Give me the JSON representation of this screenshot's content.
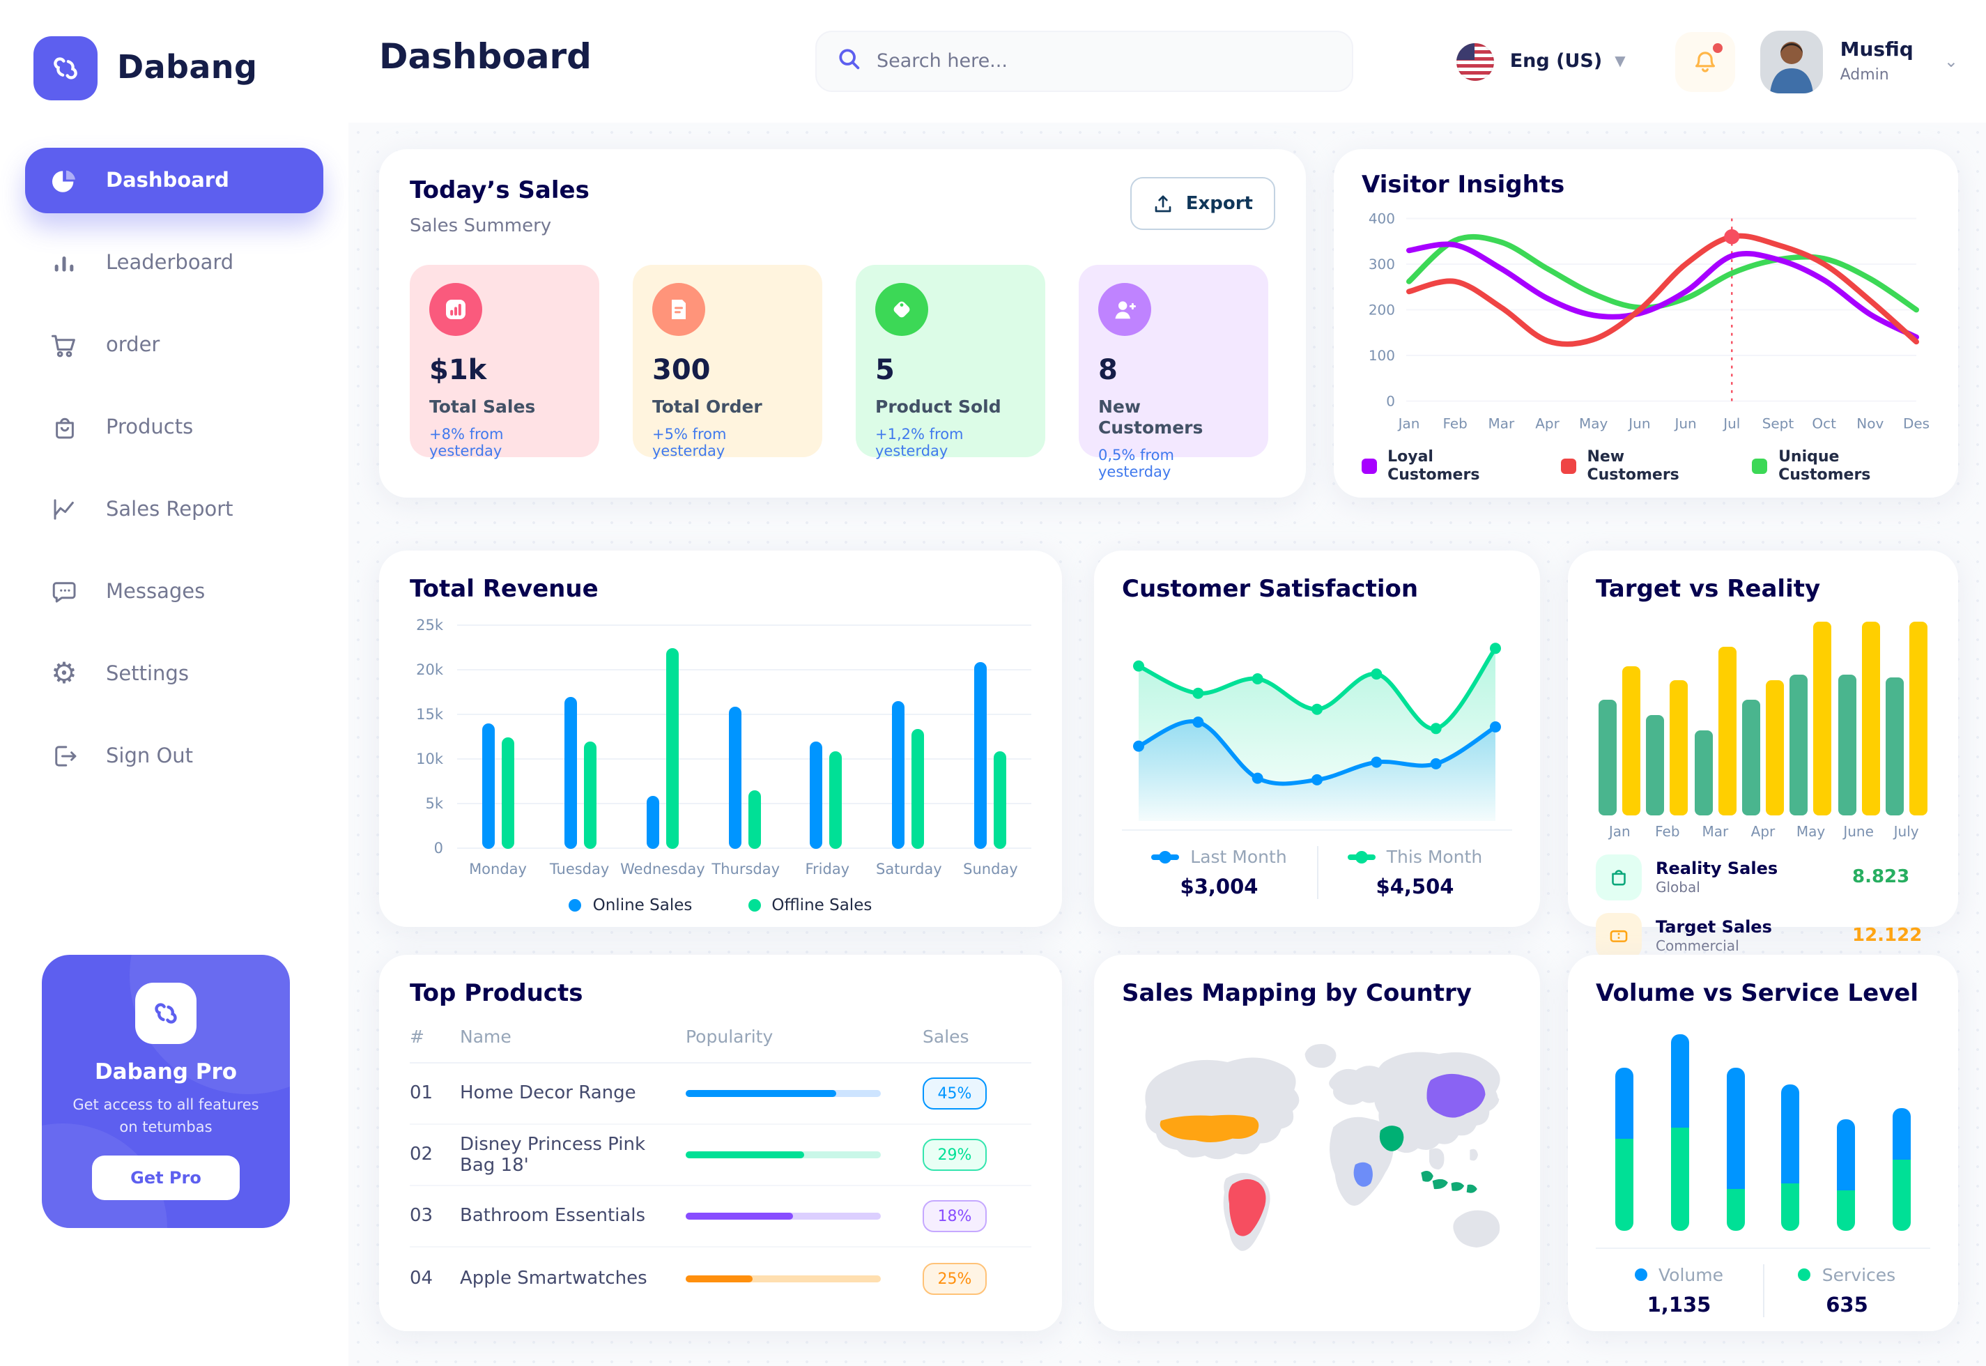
{
  "app": {
    "brand": "Dabang",
    "accent_color": "#5D5FEF"
  },
  "header": {
    "title": "Dashboard",
    "search_placeholder": "Search here...",
    "language": "Eng (US)",
    "user": {
      "name": "Musfiq",
      "role": "Admin"
    }
  },
  "sidebar": {
    "items": [
      {
        "label": "Dashboard",
        "icon": "pie-chart-icon",
        "active": true
      },
      {
        "label": "Leaderboard",
        "icon": "bar-chart-icon",
        "active": false
      },
      {
        "label": "order",
        "icon": "cart-icon",
        "active": false
      },
      {
        "label": "Products",
        "icon": "bag-icon",
        "active": false
      },
      {
        "label": "Sales Report",
        "icon": "line-chart-icon",
        "active": false
      },
      {
        "label": "Messages",
        "icon": "chat-icon",
        "active": false
      },
      {
        "label": "Settings",
        "icon": "gear-icon",
        "active": false
      },
      {
        "label": "Sign Out",
        "icon": "sign-out-icon",
        "active": false
      }
    ],
    "promo": {
      "title": "Dabang Pro",
      "subtitle": "Get access to all features on tetumbas",
      "cta_label": "Get Pro"
    }
  },
  "today_sales": {
    "title": "Today’s Sales",
    "subtitle": "Sales Summery",
    "export_label": "Export",
    "stats": [
      {
        "value": "$1k",
        "label": "Total Sales",
        "delta": "+8% from yesterday",
        "bg": "#FFE2E5",
        "accent": "#FA5A7D",
        "icon": "bar-stats-icon"
      },
      {
        "value": "300",
        "label": "Total Order",
        "delta": "+5% from yesterday",
        "bg": "#FFF4DE",
        "accent": "#FF947A",
        "icon": "receipt-icon"
      },
      {
        "value": "5",
        "label": "Product Sold",
        "delta": "+1,2% from yesterday",
        "bg": "#DCFCE7",
        "accent": "#3CD856",
        "icon": "tag-icon"
      },
      {
        "value": "8",
        "label": "New Customers",
        "delta": "0,5% from yesterday",
        "bg": "#F3E8FF",
        "accent": "#BF83FF",
        "icon": "user-plus-icon"
      }
    ]
  },
  "visitor_insights": {
    "title": "Visitor Insights",
    "chart_data": {
      "type": "line",
      "x": [
        "Jan",
        "Feb",
        "Mar",
        "Apr",
        "May",
        "Jun",
        "Jun",
        "Jul",
        "Sept",
        "Oct",
        "Nov",
        "Des"
      ],
      "ylim": [
        0,
        400
      ],
      "yticks": [
        0,
        100,
        200,
        300,
        400
      ],
      "series": [
        {
          "name": "Loyal Customers",
          "color": "#A700FF",
          "values": [
            330,
            342,
            290,
            225,
            188,
            192,
            240,
            318,
            310,
            265,
            190,
            140
          ]
        },
        {
          "name": "New Customers",
          "color": "#EF4444",
          "values": [
            240,
            262,
            205,
            132,
            135,
            200,
            300,
            360,
            342,
            300,
            220,
            130
          ]
        },
        {
          "name": "Unique Customers",
          "color": "#3CD856",
          "values": [
            262,
            352,
            348,
            290,
            235,
            205,
            225,
            280,
            310,
            312,
            268,
            200
          ]
        }
      ],
      "marker": {
        "series": "New Customers",
        "x": "Jul",
        "x_index": 7,
        "value": 360,
        "line_color": "#F64E60"
      }
    }
  },
  "total_revenue": {
    "title": "Total Revenue",
    "chart_data": {
      "type": "bar",
      "categories": [
        "Monday",
        "Tuesday",
        "Wednesday",
        "Thursday",
        "Friday",
        "Saturday",
        "Sunday"
      ],
      "yticks": [
        "0",
        "5k",
        "10k",
        "15k",
        "20k",
        "25k"
      ],
      "ymax_k": 25,
      "series": [
        {
          "name": "Online Sales",
          "color": "#0095FF",
          "values_k": [
            14,
            17,
            6,
            16,
            12,
            16.5,
            21
          ]
        },
        {
          "name": "Offline Sales",
          "color": "#00E096",
          "values_k": [
            12.5,
            12,
            22.5,
            6.5,
            11,
            13.5,
            11
          ]
        }
      ]
    }
  },
  "customer_satisfaction": {
    "title": "Customer Satisfaction",
    "chart_data": {
      "type": "area",
      "series": [
        {
          "name": "Last Month",
          "color": "#0095FF",
          "total": "$3,004",
          "values": [
            38,
            53,
            18,
            17,
            28,
            27,
            50
          ]
        },
        {
          "name": "This Month",
          "color": "#00E096",
          "total": "$4,504",
          "values": [
            88,
            71,
            80,
            61,
            83,
            49,
            99
          ]
        }
      ]
    }
  },
  "target_vs_reality": {
    "title": "Target vs Reality",
    "chart_data": {
      "type": "bar",
      "categories": [
        "Jan",
        "Feb",
        "Mar",
        "Apr",
        "May",
        "June",
        "July"
      ],
      "series": [
        {
          "name": "Reality Sales",
          "color": "#4AB58E",
          "values": [
            8.2,
            7.1,
            6.0,
            8.2,
            10,
            10,
            9.8
          ]
        },
        {
          "name": "Target Sales",
          "color": "#FFCF00",
          "values": [
            10.6,
            9.6,
            12,
            9.6,
            13.8,
            13.8,
            13.8
          ]
        }
      ]
    },
    "legend": [
      {
        "label": "Reality Sales",
        "sublabel": "Global",
        "value": "8.823",
        "value_color": "#27AE60",
        "icon_bg": "#E2FFF3",
        "icon": "bag-icon"
      },
      {
        "label": "Target Sales",
        "sublabel": "Commercial",
        "value": "12.122",
        "value_color": "#FFA412",
        "icon_bg": "#FFF4DE",
        "icon": "ticket-icon"
      }
    ]
  },
  "top_products": {
    "title": "Top Products",
    "headers": [
      "#",
      "Name",
      "Popularity",
      "Sales"
    ],
    "rows": [
      {
        "num": "01",
        "name": "Home Decor Range",
        "popularity_pct": 77,
        "sales": "45%",
        "color": "#0095FF",
        "track": "#CDE4FF",
        "badge_bg": "#EAF6FF",
        "badge_border": "#0095FF"
      },
      {
        "num": "02",
        "name": "Disney Princess Pink Bag 18'",
        "popularity_pct": 61,
        "sales": "29%",
        "color": "#00E096",
        "track": "#C9F7E8",
        "badge_bg": "#E9FFF5",
        "badge_border": "#34E5AE"
      },
      {
        "num": "03",
        "name": "Bathroom Essentials",
        "popularity_pct": 55,
        "sales": "18%",
        "color": "#884DFF",
        "track": "#DCCFFF",
        "badge_bg": "#F6EFFF",
        "badge_border": "#C5A8FF"
      },
      {
        "num": "04",
        "name": "Apple Smartwatches",
        "popularity_pct": 34,
        "sales": "25%",
        "color": "#FF8F0D",
        "track": "#FFDFB0",
        "badge_bg": "#FFF4E4",
        "badge_border": "#FFC277"
      }
    ]
  },
  "sales_map": {
    "title": "Sales Mapping by Country",
    "countries": [
      {
        "name": "United States",
        "color": "#FFA412"
      },
      {
        "name": "Brazil",
        "color": "#F64E60"
      },
      {
        "name": "Saudi Arabia",
        "color": "#00B074"
      },
      {
        "name": "DR Congo",
        "color": "#6D8DF8"
      },
      {
        "name": "China",
        "color": "#8A63F3"
      },
      {
        "name": "Indonesia",
        "color": "#10A974"
      }
    ]
  },
  "volume_service": {
    "title": "Volume vs Service Level",
    "chart_data": {
      "type": "stacked-bar",
      "series": [
        {
          "name": "Volume",
          "color": "#0095FF",
          "total": "1,135",
          "values": [
            51,
            67,
            87,
            71,
            51,
            37
          ]
        },
        {
          "name": "Services",
          "color": "#00E096",
          "total": "635",
          "values": [
            66,
            74,
            30,
            34,
            29,
            51
          ]
        }
      ]
    }
  }
}
